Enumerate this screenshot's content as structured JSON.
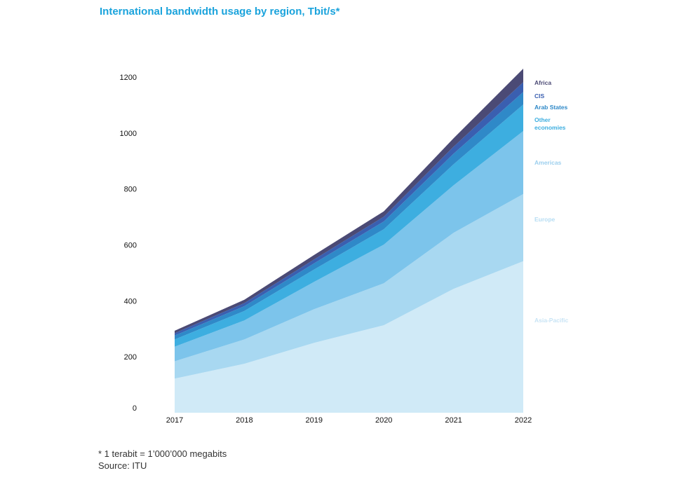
{
  "chart_data": {
    "type": "area",
    "stacked": true,
    "title": "International bandwidth usage by region, Tbit/s*",
    "xlabel": "",
    "ylabel": "",
    "x": [
      "2017",
      "2018",
      "2019",
      "2020",
      "2021",
      "2022"
    ],
    "ylim": [
      0,
      1200
    ],
    "yticks": [
      0,
      200,
      400,
      600,
      800,
      1000,
      1200
    ],
    "series": [
      {
        "name": "Asia-Pacific",
        "values": [
          122,
          175,
          250,
          313,
          443,
          542
        ],
        "color": "#d0eaf7"
      },
      {
        "name": "Europe",
        "values": [
          62,
          87,
          120,
          150,
          200,
          240
        ],
        "color": "#a8d8f1"
      },
      {
        "name": "Americas",
        "values": [
          52,
          68,
          98,
          138,
          170,
          225
        ],
        "color": "#7cc4eb"
      },
      {
        "name": "Other economies",
        "values": [
          26,
          34,
          44,
          55,
          75,
          95
        ],
        "color": "#3daee0"
      },
      {
        "name": "Arab States",
        "values": [
          14,
          17,
          22,
          28,
          38,
          45
        ],
        "color": "#2f89c8"
      },
      {
        "name": "CIS",
        "values": [
          8,
          11,
          14,
          17,
          25,
          35
        ],
        "color": "#3a5fb0"
      },
      {
        "name": "Africa",
        "values": [
          9,
          12,
          16,
          19,
          30,
          48
        ],
        "color": "#4b4a75"
      }
    ],
    "legend": [
      {
        "text": "Africa",
        "color": "#4b4a75"
      },
      {
        "text": "CIS",
        "color": "#3a5fb0"
      },
      {
        "text": "Arab States",
        "color": "#2f89c8"
      },
      {
        "text": "Other economies",
        "color": "#3daee0"
      },
      {
        "text": "Americas",
        "color": "#9ccfee"
      },
      {
        "text": "Europe",
        "color": "#b6ddf3"
      },
      {
        "text": "Asia-Pacific",
        "color": "#c8e4f5"
      }
    ]
  },
  "footnotes": {
    "note": "* 1 terabit = 1’000’000 megabits",
    "source": "Source: ITU"
  }
}
